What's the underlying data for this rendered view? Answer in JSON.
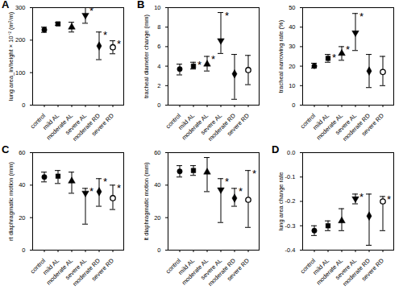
{
  "chart_data": [
    {
      "type": "scatter",
      "panel": "A",
      "y_label": "lung area_in/height × 10⁻² (m²/m)",
      "categories": [
        "control",
        "mild AL",
        "moderate AL",
        "severe AL",
        "moderate RD",
        "severe RD"
      ],
      "values": [
        232,
        250,
        240,
        276,
        182,
        178
      ],
      "error_low": [
        224,
        246,
        225,
        252,
        140,
        158
      ],
      "error_high": [
        240,
        254,
        255,
        300,
        225,
        198
      ],
      "marker": [
        "circle",
        "square",
        "triangle",
        "triangle-down",
        "diamond",
        "circle-open"
      ],
      "color": "#000000",
      "ylim": [
        0,
        300
      ],
      "yticks": [
        0,
        100,
        200,
        300
      ],
      "annotations": [
        {
          "category": "severe AL",
          "text": "*"
        },
        {
          "category": "moderate RD",
          "text": "*"
        },
        {
          "category": "severe RD",
          "text": "*"
        }
      ]
    },
    {
      "type": "scatter",
      "panel": "B",
      "y_label": "tracheal diameter change (mm)",
      "categories": [
        "control",
        "mild AL",
        "moderate AL",
        "severe AL",
        "moderate RD",
        "severe RD"
      ],
      "values": [
        3.7,
        4.0,
        4.2,
        6.6,
        3.2,
        3.6
      ],
      "error_low": [
        3.1,
        3.7,
        3.5,
        5.3,
        0.6,
        2.1
      ],
      "error_high": [
        4.2,
        4.4,
        5.0,
        9.5,
        5.2,
        5.1
      ],
      "marker": [
        "circle",
        "square",
        "triangle",
        "triangle-down",
        "diamond",
        "circle-open"
      ],
      "color": "#000000",
      "ylim": [
        0,
        10
      ],
      "yticks": [
        0,
        2,
        4,
        6,
        8,
        10
      ],
      "annotations": [
        {
          "category": "mild AL",
          "text": "*"
        },
        {
          "category": "moderate AL",
          "text": "*"
        },
        {
          "category": "severe AL",
          "text": "*"
        }
      ]
    },
    {
      "type": "scatter",
      "y_label": "tracheal narrowing rate (%)",
      "categories": [
        "control",
        "mild AL",
        "moderate AL",
        "severe AL",
        "moderate RD",
        "severe RD"
      ],
      "values": [
        20,
        24,
        26.5,
        37,
        17.5,
        17
      ],
      "error_low": [
        19,
        22,
        23,
        28,
        9,
        10
      ],
      "error_high": [
        21.5,
        26,
        30,
        47,
        26,
        25
      ],
      "marker": [
        "circle",
        "square",
        "triangle",
        "triangle-down",
        "diamond",
        "circle-open"
      ],
      "color": "#000000",
      "ylim": [
        0,
        50
      ],
      "yticks": [
        0,
        10,
        20,
        30,
        40,
        50
      ],
      "annotations": [
        {
          "category": "mild AL",
          "text": "*"
        },
        {
          "category": "moderate AL",
          "text": "*"
        },
        {
          "category": "severe AL",
          "text": "*"
        }
      ]
    },
    {
      "type": "scatter",
      "panel": "C",
      "y_label": "rt diaphragmatic motion (mm)",
      "categories": [
        "control",
        "mild AL",
        "moderate AL",
        "severe AL",
        "moderate RD",
        "severe RD"
      ],
      "values": [
        45,
        45.5,
        42.5,
        35,
        36,
        32
      ],
      "error_low": [
        42,
        41,
        35,
        16,
        27,
        25
      ],
      "error_high": [
        48,
        49,
        48,
        38,
        44,
        40
      ],
      "marker": [
        "circle",
        "square",
        "triangle",
        "triangle-down",
        "diamond",
        "circle-open"
      ],
      "color": "#000000",
      "ylim": [
        0,
        60
      ],
      "yticks": [
        0,
        20,
        40,
        60
      ],
      "annotations": [
        {
          "category": "severe AL",
          "text": "*"
        },
        {
          "category": "moderate RD",
          "text": "*"
        },
        {
          "category": "severe RD",
          "text": "*"
        }
      ]
    },
    {
      "type": "scatter",
      "y_label": "lt diaphragmatic motion (mm)",
      "categories": [
        "control",
        "mild AL",
        "moderate AL",
        "severe AL",
        "moderate RD",
        "severe RD"
      ],
      "values": [
        48.5,
        49,
        48,
        37,
        32,
        31
      ],
      "error_low": [
        45,
        46,
        36,
        17,
        27,
        14
      ],
      "error_high": [
        52,
        52,
        57,
        44,
        38,
        49
      ],
      "marker": [
        "circle",
        "square",
        "triangle",
        "triangle-down",
        "diamond",
        "circle-open"
      ],
      "color": "#000000",
      "ylim": [
        0,
        60
      ],
      "yticks": [
        0,
        20,
        40,
        60
      ],
      "annotations": [
        {
          "category": "severe AL",
          "text": "*"
        },
        {
          "category": "moderate RD",
          "text": "*"
        },
        {
          "category": "severe RD",
          "text": "*"
        }
      ]
    },
    {
      "type": "scatter",
      "panel": "D",
      "y_label": "lung area change rate",
      "categories": [
        "control",
        "mild AL",
        "moderate AL",
        "severe AL",
        "moderate RD",
        "severe RD"
      ],
      "values": [
        -0.32,
        -0.3,
        -0.28,
        -0.19,
        -0.26,
        -0.2
      ],
      "error_low": [
        -0.34,
        -0.32,
        -0.32,
        -0.21,
        -0.38,
        -0.32
      ],
      "error_high": [
        -0.3,
        -0.28,
        -0.23,
        -0.17,
        -0.17,
        -0.18
      ],
      "marker": [
        "circle",
        "square",
        "triangle",
        "triangle-down",
        "diamond",
        "circle-open"
      ],
      "color": "#000000",
      "ylim": [
        -0.4,
        0
      ],
      "yticks": [
        -0.4,
        -0.3,
        -0.2,
        -0.1,
        {
          "value": 0,
          "label": "0.0"
        }
      ],
      "reference_line": {
        "value": 0,
        "line_style": "dotted"
      },
      "annotations": [
        {
          "category": "severe AL",
          "text": "*"
        },
        {
          "category": "severe RD",
          "text": "*"
        }
      ]
    }
  ]
}
